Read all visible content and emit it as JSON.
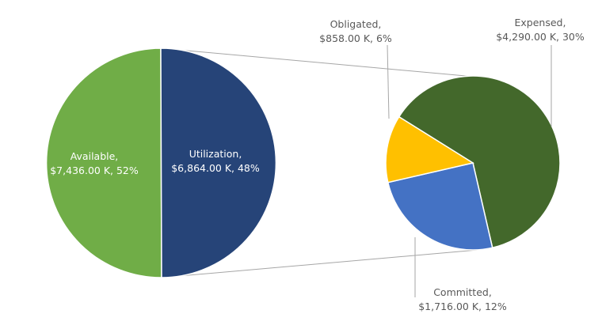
{
  "chart_data": {
    "type": "pie-of-pie",
    "title": "",
    "primary_pie": {
      "slices": [
        {
          "name": "Available",
          "value": 7436.0,
          "value_label": "$7,436.00 K",
          "percent": 52,
          "color": "#70ad47"
        },
        {
          "name": "Utilization",
          "value": 6864.0,
          "value_label": "$6,864.00 K",
          "percent": 48,
          "color": "#264478"
        }
      ]
    },
    "secondary_pie": {
      "parent": "Utilization",
      "slices": [
        {
          "name": "Expensed",
          "value": 4290.0,
          "value_label": "$4,290.00 K",
          "percent": 30,
          "color": "#43682b"
        },
        {
          "name": "Committed",
          "value": 1716.0,
          "value_label": "$1,716.00 K",
          "percent": 12,
          "color": "#4472c4"
        },
        {
          "name": "Obligated",
          "value": 858.0,
          "value_label": "$858.00 K",
          "percent": 6,
          "color": "#ffc000"
        }
      ]
    },
    "legend": "none",
    "units": "K (thousands USD)"
  },
  "labels": {
    "available": {
      "line1": "Available,",
      "line2": "$7,436.00 K, 52%"
    },
    "utilization": {
      "line1": "Utilization,",
      "line2": "$6,864.00 K, 48%"
    },
    "obligated": {
      "line1": "Obligated,",
      "line2": "$858.00 K, 6%"
    },
    "expensed": {
      "line1": "Expensed,",
      "line2": "$4,290.00 K, 30%"
    },
    "committed": {
      "line1": "Committed,",
      "line2": "$1,716.00 K, 12%"
    }
  }
}
